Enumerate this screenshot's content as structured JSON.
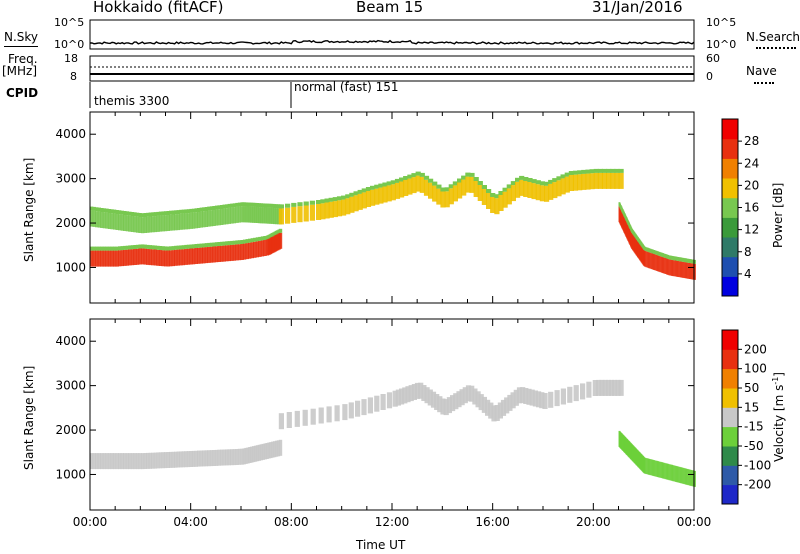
{
  "header": {
    "title": "Hokkaido (fitACF)",
    "beam": "Beam 15",
    "date": "31/Jan/2016"
  },
  "noise_panel": {
    "left_label": "N.Sky",
    "right_label": "N.Search",
    "left_ticks": [
      "10^5",
      "10^0"
    ],
    "right_ticks": [
      "10^5",
      "10^0"
    ]
  },
  "freq_panel": {
    "left_label_line1": "Freq.",
    "left_label_line2": "[MHz]",
    "left_ticks": [
      "18",
      "8"
    ],
    "right_ticks": [
      "60",
      "0"
    ],
    "right_label": "Nave"
  },
  "cpid": {
    "label": "CPID",
    "modes": [
      {
        "name": "themis 3300"
      },
      {
        "name": "normal (fast) 151"
      }
    ]
  },
  "chart_data": [
    {
      "type": "heatmap",
      "panel": "power",
      "ylabel": "Slant Range [km]",
      "xlabel": "Time UT",
      "ylim": [
        200,
        4500
      ],
      "yticks": [
        "1000",
        "2000",
        "3000",
        "4000"
      ],
      "xticks": [
        "00:00",
        "04:00",
        "08:00",
        "12:00",
        "16:00",
        "20:00",
        "00:00"
      ],
      "xlim_hours": [
        0,
        24
      ],
      "colorbar": {
        "label": "Power [dB]",
        "ticks": [
          "28",
          "24",
          "20",
          "16",
          "12",
          "8",
          "4"
        ],
        "range": [
          0,
          30
        ],
        "colors": [
          "#0000e0",
          "#1e4fb0",
          "#2f7a68",
          "#3a9a3a",
          "#78c850",
          "#f0c000",
          "#f08000",
          "#e83010",
          "#f00000"
        ]
      },
      "echo_bands": [
        {
          "t": [
            0,
            1,
            2,
            3,
            4,
            5,
            6,
            7,
            7.5
          ],
          "range": [
            1200,
            1200,
            1250,
            1200,
            1250,
            1300,
            1350,
            1450,
            1600
          ],
          "power": 28
        },
        {
          "t": [
            0,
            2,
            4,
            6,
            7.5
          ],
          "range": [
            2100,
            1950,
            2050,
            2200,
            2150
          ],
          "power": 14
        },
        {
          "t": [
            7.5,
            9,
            10,
            11,
            12,
            13,
            14,
            15,
            16,
            17,
            18,
            19,
            20,
            21
          ],
          "range": [
            2150,
            2250,
            2350,
            2550,
            2700,
            2900,
            2500,
            2900,
            2350,
            2800,
            2650,
            2900,
            2950,
            2950
          ],
          "power": 20
        },
        {
          "t": [
            21,
            21.5,
            22,
            23,
            24
          ],
          "range": [
            2200,
            1600,
            1200,
            1000,
            900
          ],
          "power": 26
        }
      ]
    },
    {
      "type": "heatmap",
      "panel": "velocity",
      "ylabel": "Slant Range [km]",
      "xlabel": "Time UT",
      "ylim": [
        200,
        4500
      ],
      "yticks": [
        "1000",
        "2000",
        "3000",
        "4000"
      ],
      "xticks": [
        "00:00",
        "04:00",
        "08:00",
        "12:00",
        "16:00",
        "20:00",
        "00:00"
      ],
      "xlim_hours": [
        0,
        24
      ],
      "colorbar": {
        "label": "Velocity [m s^-1]",
        "ticks": [
          "200",
          "100",
          "50",
          "15",
          "-15",
          "-50",
          "-100",
          "-200"
        ],
        "colors": [
          "#1e28c8",
          "#2e5aa8",
          "#2f8a4a",
          "#6ccf3a",
          "#c8c8c8",
          "#f0c000",
          "#f08000",
          "#e83010",
          "#f00000"
        ]
      },
      "echo_bands": [
        {
          "t": [
            0,
            2,
            4,
            6,
            7.5
          ],
          "range": [
            1300,
            1300,
            1350,
            1400,
            1600
          ],
          "velocity": 0
        },
        {
          "t": [
            7.5,
            10,
            12,
            13,
            14,
            15,
            16,
            17,
            18,
            20,
            21
          ],
          "range": [
            2200,
            2400,
            2700,
            2900,
            2500,
            2850,
            2350,
            2800,
            2650,
            2950,
            2950
          ],
          "velocity": 0
        },
        {
          "t": [
            21,
            22,
            24
          ],
          "range": [
            1800,
            1200,
            900
          ],
          "velocity": 30
        }
      ]
    }
  ]
}
